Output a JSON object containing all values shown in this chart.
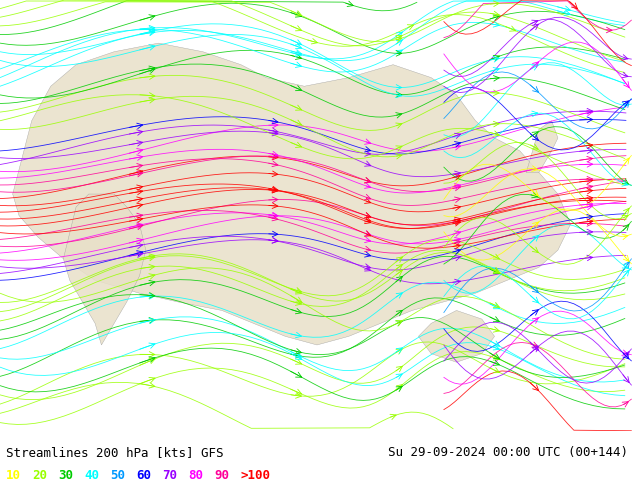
{
  "title_left": "Streamlines 200 hPa [kts] GFS",
  "title_right": "Su 29-09-2024 00:00 UTC (00+144)",
  "legend_labels": [
    "10",
    "20",
    "30",
    "40",
    "50",
    "60",
    "70",
    "80",
    "90",
    ">100"
  ],
  "legend_colors": [
    "#ffff00",
    "#99ff00",
    "#00cc00",
    "#00ffff",
    "#0099ff",
    "#0000ff",
    "#9900ff",
    "#ff00ff",
    "#ff0099",
    "#ff0000"
  ],
  "background_color": "#cceeff",
  "land_color": "#e8e0c8",
  "fig_bg": "#ffffff",
  "title_fontsize": 9,
  "legend_fontsize": 9,
  "fig_width": 6.34,
  "fig_height": 4.9
}
